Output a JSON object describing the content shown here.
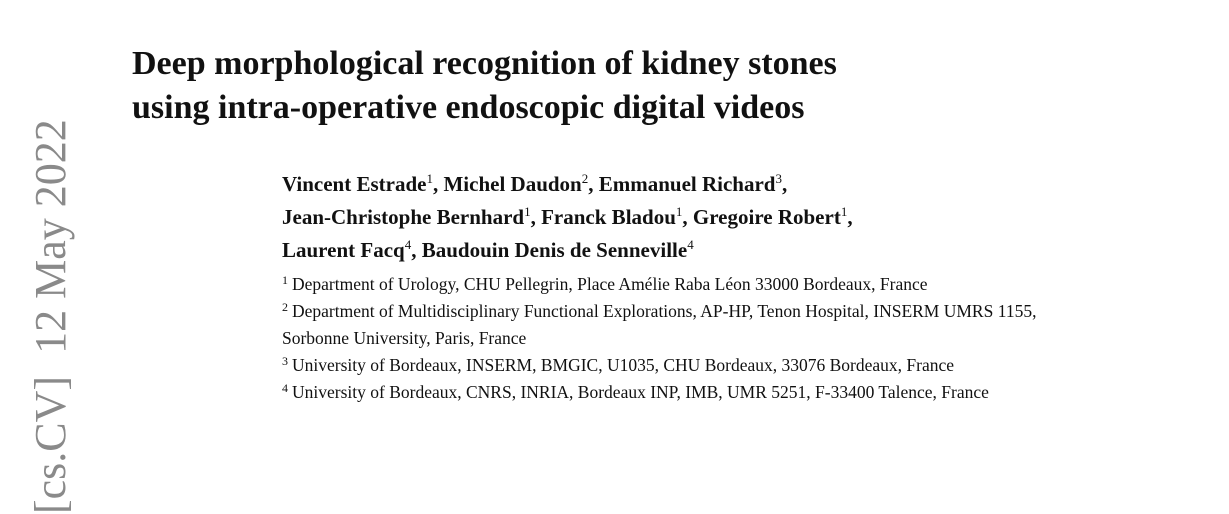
{
  "side_stamp": "[cs.CV]  12 May 2022",
  "title": [
    "Deep morphological recognition of kidney stones",
    "using intra-operative endoscopic digital videos"
  ],
  "authors": [
    [
      {
        "name": "Vincent Estrade",
        "sup": "1",
        "sep": ","
      },
      {
        "name": "Michel Daudon",
        "sup": "2",
        "sep": ","
      },
      {
        "name": "Emmanuel Richard",
        "sup": "3",
        "sep": ","
      }
    ],
    [
      {
        "name": "Jean-Christophe Bernhard",
        "sup": "1",
        "sep": ","
      },
      {
        "name": "Franck Bladou",
        "sup": "1",
        "sep": ","
      },
      {
        "name": "Gregoire Robert",
        "sup": "1",
        "sep": ","
      }
    ],
    [
      {
        "name": "Laurent Facq",
        "sup": "4",
        "sep": ","
      },
      {
        "name": "Baudouin Denis de Senneville",
        "sup": "4"
      }
    ]
  ],
  "affiliations": [
    {
      "mark": "1",
      "text": "Department of Urology, CHU Pellegrin, Place Amélie Raba Léon 33000 Bordeaux, France"
    },
    {
      "mark": "2",
      "text": "Department of Multidisciplinary Functional Explorations, AP-HP, Tenon Hospital, INSERM UMRS 1155, Sorbonne University, Paris, France"
    },
    {
      "mark": "3",
      "text": "University of Bordeaux, INSERM, BMGIC, U1035, CHU Bordeaux, 33076 Bordeaux, France"
    },
    {
      "mark": "4",
      "text": "University of Bordeaux, CNRS, INRIA, Bordeaux INP, IMB, UMR 5251, F-33400 Talence, France"
    }
  ]
}
